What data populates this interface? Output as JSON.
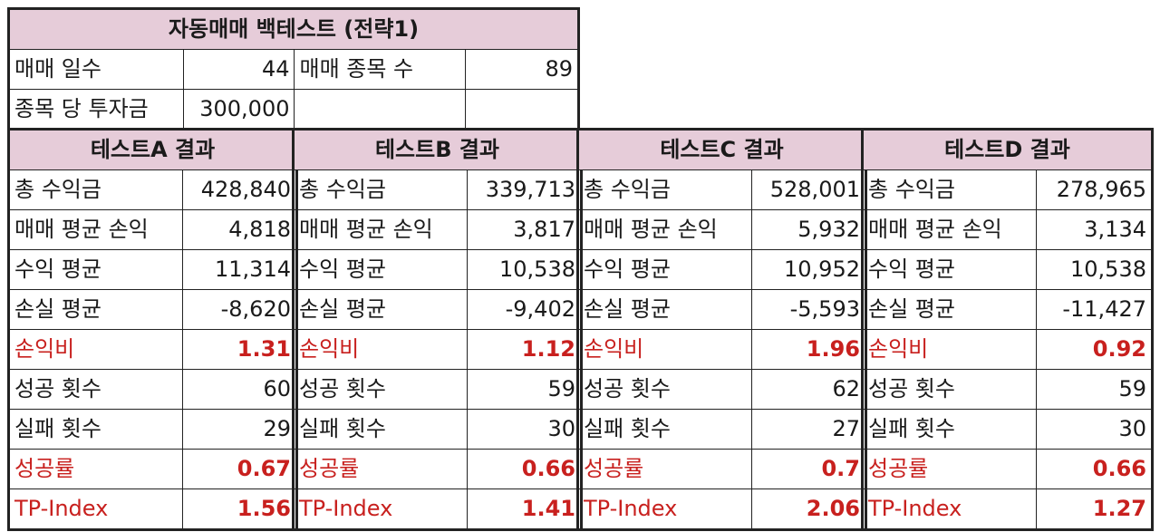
{
  "summary": {
    "title": "자동매매 백테스트 (전략1)",
    "trade_days_label": "매매 일수",
    "trade_days_value": "44",
    "trade_stocks_label": "매매 종목 수",
    "trade_stocks_value": "89",
    "per_stock_invest_label": "종목 당 투자금",
    "per_stock_invest_value": "300,000"
  },
  "labels": {
    "total_profit": "총 수익금",
    "avg_pl": "매매 평균 손익",
    "avg_profit": "수익 평균",
    "avg_loss": "손실 평균",
    "pl_ratio": "손익비",
    "success_count": "성공 횟수",
    "fail_count": "실패 횟수",
    "success_rate": "성공률",
    "tp_index": "TP-Index"
  },
  "tests": [
    {
      "title": "테스트A 결과",
      "total_profit": "428,840",
      "avg_pl": "4,818",
      "avg_profit": "11,314",
      "avg_loss": "-8,620",
      "pl_ratio": "1.31",
      "success_count": "60",
      "fail_count": "29",
      "success_rate": "0.67",
      "tp_index": "1.56"
    },
    {
      "title": "테스트B 결과",
      "total_profit": "339,713",
      "avg_pl": "3,817",
      "avg_profit": "10,538",
      "avg_loss": "-9,402",
      "pl_ratio": "1.12",
      "success_count": "59",
      "fail_count": "30",
      "success_rate": "0.66",
      "tp_index": "1.41"
    },
    {
      "title": "테스트C 결과",
      "total_profit": "528,001",
      "avg_pl": "5,932",
      "avg_profit": "10,952",
      "avg_loss": "-5,593",
      "pl_ratio": "1.96",
      "success_count": "62",
      "fail_count": "27",
      "success_rate": "0.7",
      "tp_index": "2.06"
    },
    {
      "title": "테스트D 결과",
      "total_profit": "278,965",
      "avg_pl": "3,134",
      "avg_profit": "10,538",
      "avg_loss": "-11,427",
      "pl_ratio": "0.92",
      "success_count": "59",
      "fail_count": "30",
      "success_rate": "0.66",
      "tp_index": "1.27"
    }
  ],
  "colors": {
    "header_bg": "#e6ccd9",
    "highlight_text": "#c8201e"
  }
}
